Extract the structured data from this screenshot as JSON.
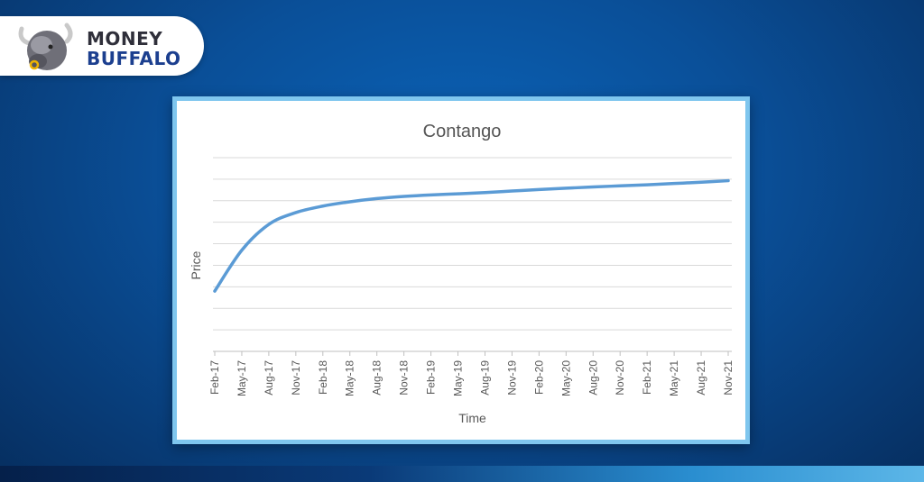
{
  "brand": {
    "line1": "MONEY",
    "line2": "BUFFALO",
    "icon": "buffalo-head-icon"
  },
  "colors": {
    "background": "#0a4f98",
    "frame_border": "#7fc6ee",
    "series_line": "#5b9bd5",
    "gridline": "#d9d9d9"
  },
  "chart_data": {
    "type": "line",
    "title": "Contango",
    "xlabel": "Time",
    "ylabel": "Price",
    "grid": "horizontal",
    "y_gridlines": 10,
    "ylim": [
      0,
      9
    ],
    "categories": [
      "Feb-17",
      "May-17",
      "Aug-17",
      "Nov-17",
      "Feb-18",
      "May-18",
      "Aug-18",
      "Nov-18",
      "Feb-19",
      "May-19",
      "Aug-19",
      "Nov-19",
      "Feb-20",
      "May-20",
      "Aug-20",
      "Nov-20",
      "Feb-21",
      "May-21",
      "Aug-21",
      "Nov-21"
    ],
    "series": [
      {
        "values": [
          2.8,
          4.7,
          5.9,
          6.45,
          6.75,
          6.95,
          7.1,
          7.2,
          7.27,
          7.32,
          7.38,
          7.45,
          7.52,
          7.58,
          7.64,
          7.69,
          7.74,
          7.8,
          7.86,
          7.93
        ]
      }
    ]
  }
}
